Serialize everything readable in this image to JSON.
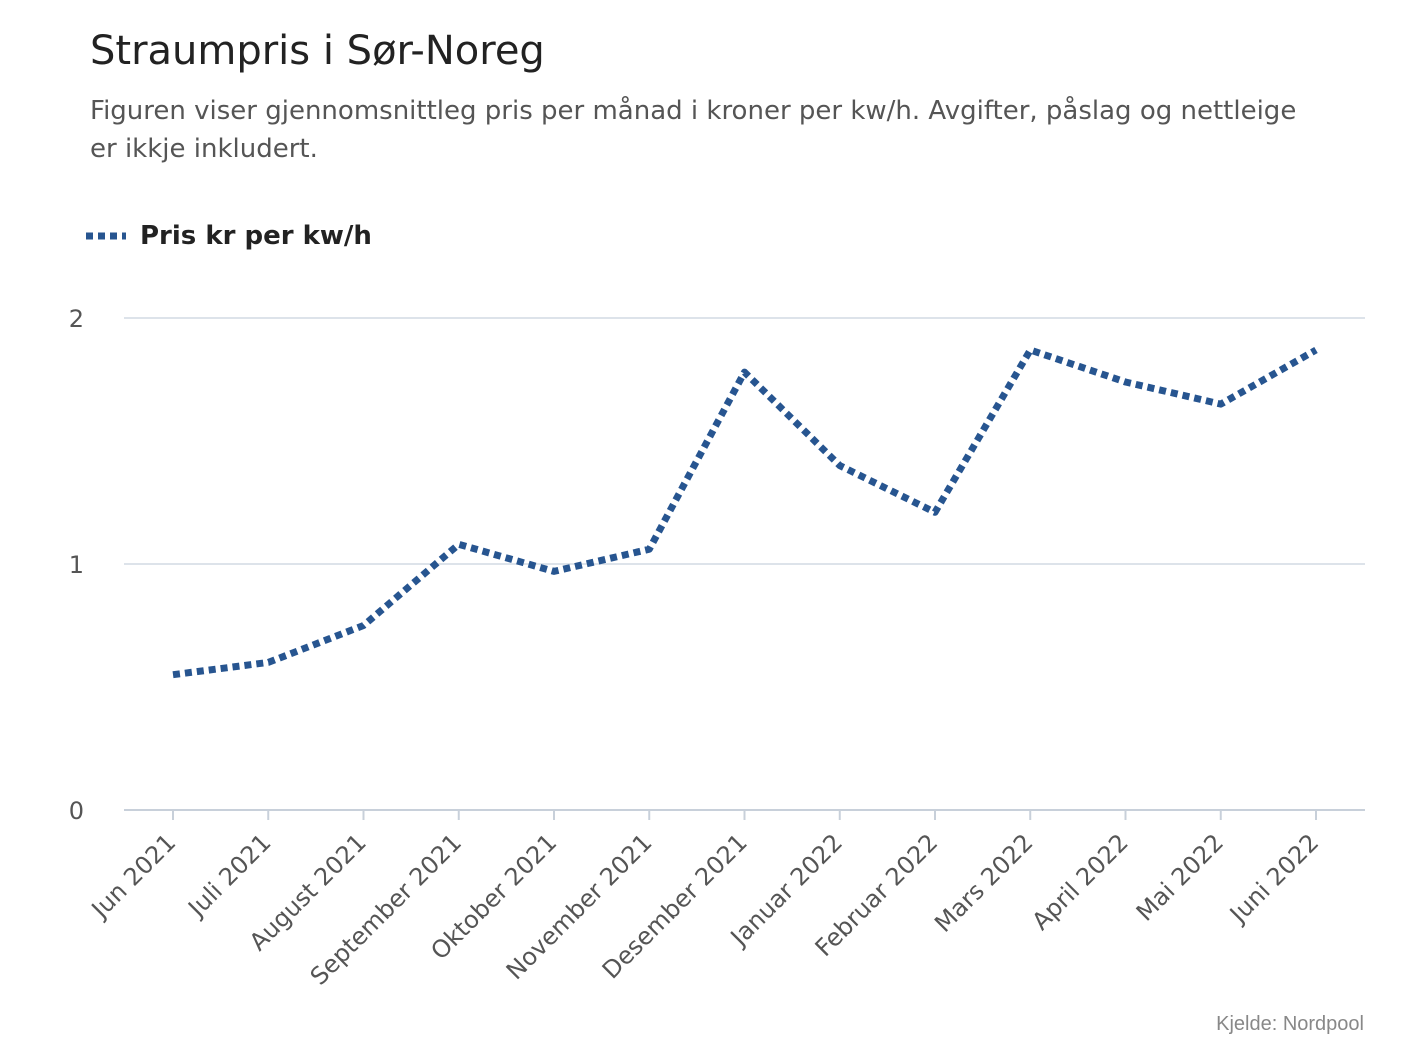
{
  "header": {
    "title": "Straumpris i Sør-Noreg",
    "subtitle": "Figuren viser gjennomsnittleg pris per månad i kroner per kw/h. Avgifter, påslag og nettleige er ikkje inkludert."
  },
  "footer": {
    "source": "Kjelde: Nordpool"
  },
  "colors": {
    "series": "#275590",
    "grid": "#dde3ea",
    "tick_text": "#555555"
  },
  "chart_data": {
    "type": "line",
    "title": "Straumpris i Sør-Noreg",
    "subtitle": "Figuren viser gjennomsnittleg pris per månad i kroner per kw/h. Avgifter, påslag og nettleige er ikkje inkludert.",
    "xlabel": "",
    "ylabel": "",
    "categories": [
      "Jun 2021",
      "Juli 2021",
      "August 2021",
      "September 2021",
      "Oktober 2021",
      "November 2021",
      "Desember 2021",
      "Januar 2022",
      "Februar 2022",
      "Mars 2022",
      "April 2022",
      "Mai 2022",
      "Juni 2022"
    ],
    "series": [
      {
        "name": "Pris kr per kw/h",
        "values": [
          0.55,
          0.6,
          0.75,
          1.08,
          0.97,
          1.06,
          1.78,
          1.4,
          1.21,
          1.87,
          1.74,
          1.65,
          1.87
        ],
        "line_style": "dotted"
      }
    ],
    "ylim": [
      0,
      2
    ],
    "yticks": [
      0,
      1,
      2
    ],
    "grid": true,
    "legend": "top-left"
  }
}
